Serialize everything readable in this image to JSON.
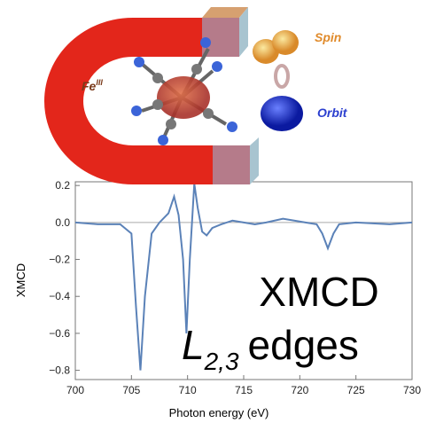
{
  "chart_data": {
    "type": "line",
    "x_label": "Photon energy (eV)",
    "y_label": "XMCD",
    "xlim": [
      700,
      730
    ],
    "xticks": [
      700,
      705,
      710,
      715,
      720,
      725,
      730
    ],
    "ylim": [
      -0.85,
      0.22
    ],
    "yticks": [
      0.2,
      {
        "value": 0,
        "label": "0.0"
      },
      {
        "value": -0.2,
        "label": "−0.2"
      },
      {
        "value": -0.4,
        "label": "−0.4"
      },
      {
        "value": -0.6,
        "label": "−0.6"
      },
      {
        "value": -0.8,
        "label": "−0.8"
      }
    ],
    "zero_line": true,
    "series": [
      {
        "color": "#5b82b8",
        "x": [
          700,
          702,
          704,
          705,
          705.4,
          705.8,
          706.2,
          706.8,
          707.5,
          708.3,
          708.8,
          709.2,
          709.6,
          709.9,
          710.2,
          710.6,
          710.9,
          711.3,
          711.7,
          712.2,
          713,
          714,
          715,
          716,
          717,
          718.5,
          719.5,
          720.5,
          721.5,
          722,
          722.5,
          723,
          723.5,
          725,
          728,
          730
        ],
        "values": [
          0,
          -0.01,
          -0.01,
          -0.06,
          -0.45,
          -0.8,
          -0.4,
          -0.06,
          0,
          0.05,
          0.14,
          0.04,
          -0.2,
          -0.6,
          -0.2,
          0.21,
          0.08,
          -0.05,
          -0.07,
          -0.03,
          -0.01,
          0.01,
          0,
          -0.01,
          0,
          0.02,
          0.01,
          0,
          -0.01,
          -0.06,
          -0.14,
          -0.06,
          -0.01,
          0,
          -0.01,
          0
        ]
      }
    ],
    "annotations": {
      "spin": "Spin",
      "orbit": "Orbit",
      "fe": "Fe",
      "fe_sup": "III",
      "xmcd": "XMCD",
      "edge_l": "L",
      "edge_sub": "2,3",
      "edges": "edges"
    }
  }
}
